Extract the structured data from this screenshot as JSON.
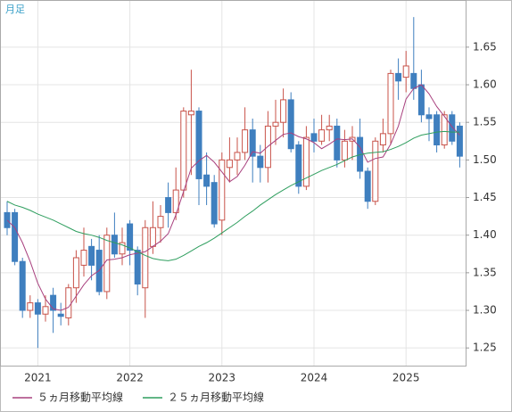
{
  "chart_data": {
    "type": "candlestick",
    "label": "月足",
    "categories": [
      null,
      null,
      null,
      null,
      "2021",
      null,
      null,
      null,
      null,
      null,
      null,
      null,
      null,
      null,
      null,
      null,
      "2022",
      null,
      null,
      null,
      null,
      null,
      null,
      null,
      null,
      null,
      null,
      null,
      "2023",
      null,
      null,
      null,
      null,
      null,
      null,
      null,
      null,
      null,
      null,
      null,
      "2024",
      null,
      null,
      null,
      null,
      null,
      null,
      null,
      null,
      null,
      null,
      null,
      "2025",
      null,
      null,
      null,
      null,
      null,
      null,
      null
    ],
    "open": [
      1.43,
      1.43,
      1.365,
      1.3,
      1.31,
      1.295,
      1.32,
      1.295,
      1.29,
      1.33,
      1.36,
      1.385,
      1.38,
      1.325,
      1.4,
      1.375,
      1.415,
      1.38,
      1.33,
      1.385,
      1.41,
      1.45,
      1.43,
      1.46,
      1.56,
      1.565,
      1.48,
      1.47,
      1.42,
      1.49,
      1.5,
      1.51,
      1.54,
      1.505,
      1.49,
      1.545,
      1.55,
      1.58,
      1.52,
      1.465,
      1.535,
      1.525,
      1.54,
      1.545,
      1.5,
      1.525,
      1.53,
      1.485,
      1.445,
      1.52,
      1.535,
      1.615,
      1.61,
      1.615,
      1.6,
      1.56,
      1.56,
      1.52,
      1.56,
      1.545
    ],
    "high": [
      1.445,
      1.435,
      1.37,
      1.32,
      1.315,
      1.32,
      1.33,
      1.31,
      1.335,
      1.38,
      1.41,
      1.395,
      1.4,
      1.41,
      1.43,
      1.41,
      1.42,
      1.385,
      1.42,
      1.445,
      1.44,
      1.47,
      1.49,
      1.57,
      1.62,
      1.57,
      1.51,
      1.48,
      1.51,
      1.53,
      1.53,
      1.57,
      1.555,
      1.52,
      1.565,
      1.58,
      1.595,
      1.59,
      1.525,
      1.545,
      1.555,
      1.56,
      1.56,
      1.555,
      1.54,
      1.545,
      1.555,
      1.49,
      1.53,
      1.555,
      1.62,
      1.635,
      1.645,
      1.69,
      1.62,
      1.57,
      1.565,
      1.565,
      1.565,
      1.55
    ],
    "low": [
      1.4,
      1.36,
      1.29,
      1.29,
      1.25,
      1.285,
      1.27,
      1.28,
      1.28,
      1.31,
      1.345,
      1.34,
      1.32,
      1.315,
      1.37,
      1.36,
      1.36,
      1.32,
      1.29,
      1.375,
      1.39,
      1.41,
      1.42,
      1.45,
      1.48,
      1.44,
      1.44,
      1.41,
      1.4,
      1.47,
      1.48,
      1.5,
      1.47,
      1.47,
      1.47,
      1.52,
      1.53,
      1.51,
      1.455,
      1.46,
      1.51,
      1.52,
      1.525,
      1.49,
      1.49,
      1.5,
      1.475,
      1.435,
      1.44,
      1.51,
      1.52,
      1.58,
      1.59,
      1.58,
      1.55,
      1.525,
      1.51,
      1.515,
      1.52,
      1.49
    ],
    "close": [
      1.41,
      1.365,
      1.3,
      1.31,
      1.295,
      1.305,
      1.3,
      1.292,
      1.33,
      1.37,
      1.38,
      1.36,
      1.325,
      1.4,
      1.375,
      1.39,
      1.38,
      1.335,
      1.41,
      1.41,
      1.425,
      1.43,
      1.46,
      1.565,
      1.565,
      1.475,
      1.465,
      1.415,
      1.5,
      1.5,
      1.51,
      1.54,
      1.505,
      1.49,
      1.545,
      1.55,
      1.58,
      1.515,
      1.465,
      1.53,
      1.525,
      1.54,
      1.545,
      1.5,
      1.525,
      1.53,
      1.485,
      1.445,
      1.525,
      1.535,
      1.615,
      1.605,
      1.625,
      1.595,
      1.56,
      1.555,
      1.52,
      1.56,
      1.525,
      1.505
    ],
    "up_color": "#c8534a",
    "down_color": "#3f7fbf",
    "series": [
      {
        "name": "５ヵ月移動平均線",
        "color": "#a8407e",
        "values": [
          1.42,
          1.41,
          1.39,
          1.365,
          1.336,
          1.315,
          1.302,
          1.3,
          1.304,
          1.319,
          1.334,
          1.346,
          1.353,
          1.367,
          1.368,
          1.37,
          1.374,
          1.376,
          1.378,
          1.385,
          1.392,
          1.402,
          1.427,
          1.458,
          1.489,
          1.499,
          1.506,
          1.497,
          1.484,
          1.471,
          1.478,
          1.493,
          1.511,
          1.509,
          1.518,
          1.526,
          1.534,
          1.536,
          1.531,
          1.528,
          1.523,
          1.515,
          1.521,
          1.528,
          1.527,
          1.528,
          1.517,
          1.497,
          1.502,
          1.504,
          1.521,
          1.545,
          1.581,
          1.595,
          1.6,
          1.588,
          1.571,
          1.558,
          1.544,
          1.533
        ]
      },
      {
        "name": "２５ヵ月移動平均線",
        "color": "#2e9e5e",
        "values": [
          1.445,
          1.44,
          1.437,
          1.433,
          1.428,
          1.424,
          1.42,
          1.415,
          1.41,
          1.405,
          1.402,
          1.4,
          1.397,
          1.393,
          1.39,
          1.387,
          1.383,
          1.378,
          1.373,
          1.369,
          1.367,
          1.366,
          1.368,
          1.373,
          1.379,
          1.385,
          1.39,
          1.396,
          1.403,
          1.41,
          1.417,
          1.425,
          1.432,
          1.44,
          1.447,
          1.454,
          1.46,
          1.466,
          1.471,
          1.476,
          1.481,
          1.486,
          1.49,
          1.494,
          1.499,
          1.504,
          1.507,
          1.509,
          1.51,
          1.511,
          1.514,
          1.518,
          1.523,
          1.529,
          1.533,
          1.535,
          1.537,
          1.538,
          1.537,
          1.537
        ]
      }
    ],
    "ylim": [
      1.2265,
      1.7127
    ],
    "yticks": [
      1.25,
      {
        "value": 1.3,
        "label": "1.30"
      },
      1.35,
      {
        "value": 1.4,
        "label": "1.40"
      },
      1.45,
      {
        "value": 1.5,
        "label": "1.50"
      },
      1.55,
      {
        "value": 1.6,
        "label": "1.60"
      },
      1.65
    ],
    "grid": true
  }
}
